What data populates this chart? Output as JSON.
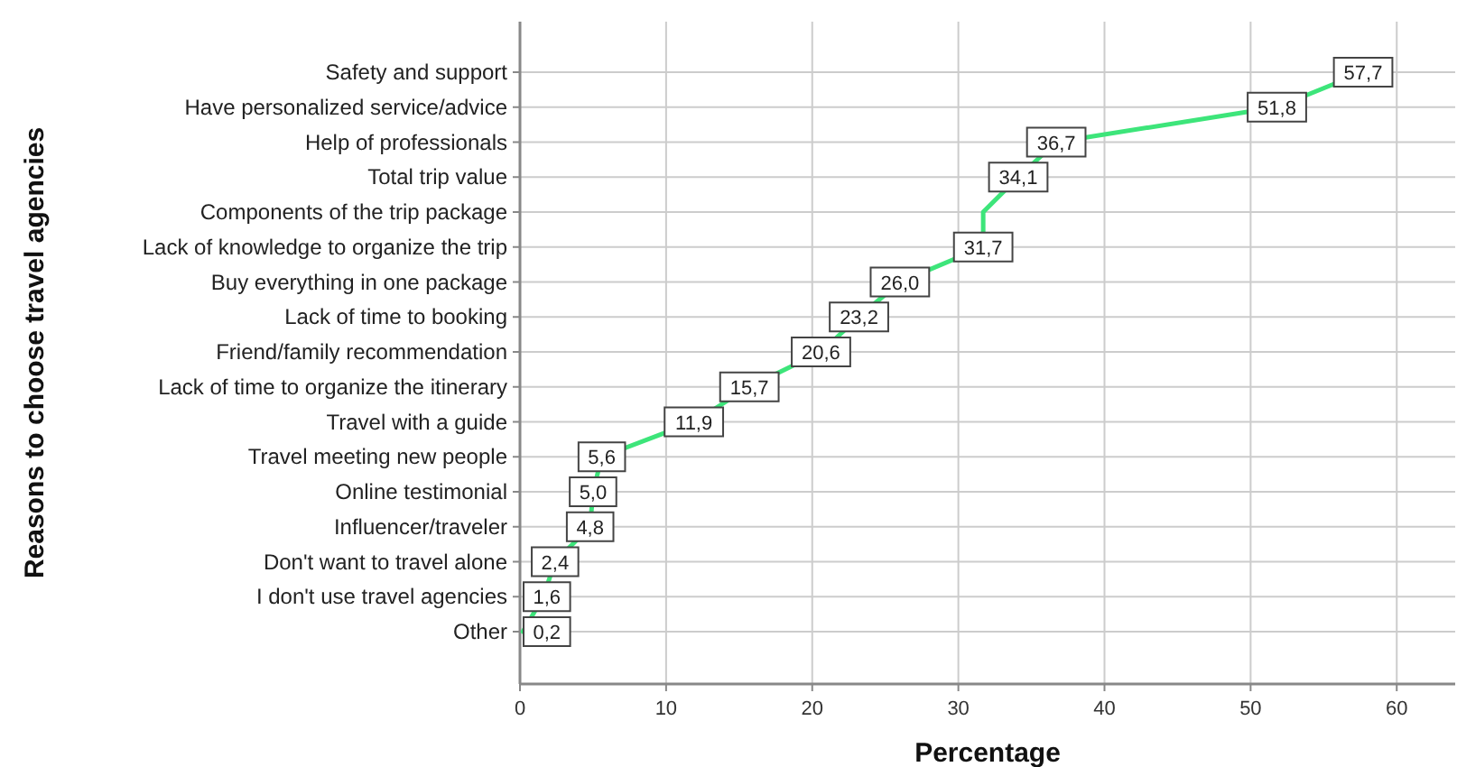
{
  "chart_data": {
    "type": "line",
    "orientation": "horizontal",
    "xlabel": "Percentage",
    "ylabel": "Reasons to choose travel agencies",
    "categories": [
      "Safety and support",
      "Have personalized service/advice",
      "Help of professionals",
      "Total trip value",
      "Components of the trip package",
      "Lack of knowledge to organize the trip",
      "Buy everything in one package",
      "Lack of time to booking",
      "Friend/family recommendation",
      "Lack of time to organize the itinerary",
      "Travel with a guide",
      "Travel meeting new people",
      "Online testimonial",
      "Influencer/traveler",
      "Don't want to travel alone",
      "I don't use travel agencies",
      "Other"
    ],
    "series": [
      {
        "color": "#3de57a",
        "values": [
          57.7,
          51.8,
          36.7,
          34.1,
          31.7,
          31.7,
          26.0,
          23.2,
          20.6,
          15.7,
          11.9,
          5.6,
          5.0,
          4.8,
          2.4,
          1.6,
          0.2
        ],
        "value_labels": [
          "57,7",
          "51,8",
          "36,7",
          "34,1",
          null,
          "31,7",
          "26,0",
          "23,2",
          "20,6",
          "15,7",
          "11,9",
          "5,6",
          "5,0",
          "4,8",
          "2,4",
          "1,6",
          "0,2"
        ]
      }
    ],
    "xlim": [
      0,
      64
    ],
    "xticks": [
      0,
      10,
      20,
      30,
      40,
      50,
      60
    ],
    "grid": true,
    "marker": "square",
    "line_style": "solid"
  }
}
